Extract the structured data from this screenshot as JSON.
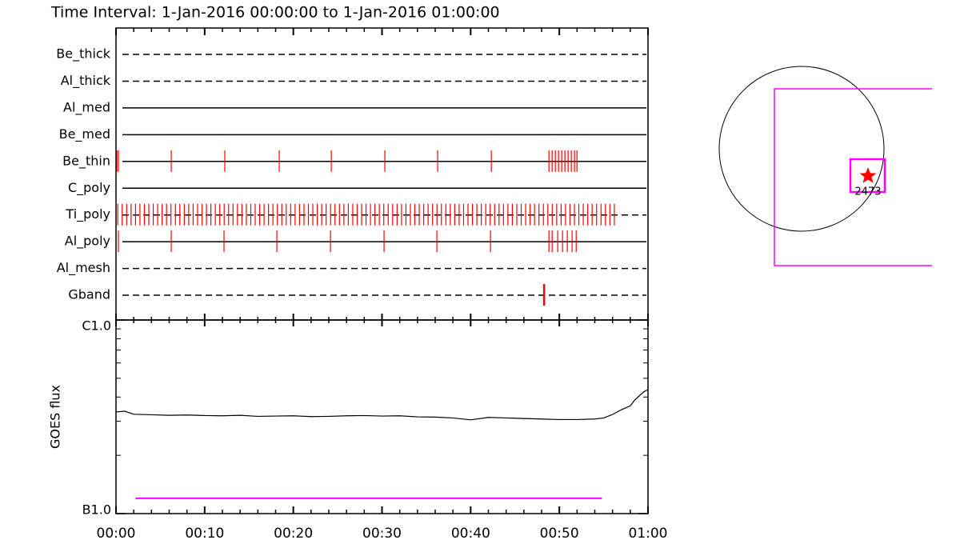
{
  "chart_data": {
    "type": "timeline",
    "title": "Time Interval:  1-Jan-2016 00:00:00 to  1-Jan-2016 01:00:00",
    "xlim": [
      0,
      60
    ],
    "xticks": [
      {
        "value": 0,
        "label": "00:00"
      },
      {
        "value": 10,
        "label": "00:10"
      },
      {
        "value": 20,
        "label": "00:20"
      },
      {
        "value": 30,
        "label": "00:30"
      },
      {
        "value": 40,
        "label": "00:40"
      },
      {
        "value": 50,
        "label": "00:50"
      },
      {
        "value": 60,
        "label": "01:00"
      }
    ],
    "xminorticks": [
      2,
      4,
      6,
      8,
      12,
      14,
      16,
      18,
      22,
      24,
      26,
      28,
      32,
      34,
      36,
      38,
      42,
      44,
      46,
      48,
      52,
      54,
      56,
      58
    ],
    "event_color": "#ff0000",
    "filters": [
      {
        "name": "Be_thick",
        "line_style": "dashed",
        "times": []
      },
      {
        "name": "Al_thick",
        "line_style": "dashed",
        "times": []
      },
      {
        "name": "Al_med",
        "line_style": "solid",
        "times": []
      },
      {
        "name": "Be_med",
        "line_style": "solid",
        "times": []
      },
      {
        "name": "Be_thin",
        "line_style": "solid",
        "times": [
          0.1,
          0.27,
          6.23,
          12.27,
          18.41,
          24.28,
          30.32,
          36.28,
          42.33,
          48.83,
          49.19,
          49.55,
          49.91,
          50.27,
          50.63,
          50.99,
          51.35,
          51.71,
          51.99
        ]
      },
      {
        "name": "C_poly",
        "line_style": "solid",
        "times": []
      },
      {
        "name": "Ti_poly",
        "line_style": "dashed",
        "times": [
          0.2,
          0.7,
          1.2,
          1.7,
          2.2,
          2.7,
          3.2,
          3.7,
          4.2,
          4.7,
          5.2,
          5.7,
          6.2,
          6.7,
          7.2,
          7.7,
          8.2,
          8.7,
          9.2,
          9.7,
          10.2,
          10.7,
          11.2,
          11.7,
          12.2,
          12.7,
          13.2,
          13.7,
          14.2,
          14.7,
          15.2,
          15.7,
          16.2,
          16.7,
          17.2,
          17.7,
          18.2,
          18.7,
          19.2,
          19.7,
          20.2,
          20.7,
          21.2,
          21.7,
          22.2,
          22.7,
          23.2,
          23.7,
          24.2,
          24.7,
          25.2,
          25.7,
          26.2,
          26.7,
          27.2,
          27.7,
          28.2,
          28.7,
          29.2,
          29.7,
          30.2,
          30.7,
          31.2,
          31.7,
          32.2,
          32.7,
          33.2,
          33.7,
          34.2,
          34.7,
          35.2,
          35.7,
          36.2,
          36.7,
          37.2,
          37.7,
          38.2,
          38.7,
          39.2,
          39.7,
          40.2,
          40.7,
          41.2,
          41.7,
          42.2,
          42.7,
          43.2,
          43.7,
          44.2,
          44.7,
          45.2,
          45.7,
          46.2,
          46.7,
          47.2,
          47.7,
          48.2,
          48.7,
          49.2,
          49.7,
          50.2,
          50.7,
          51.2,
          51.7,
          52.2,
          52.7,
          53.2,
          53.7,
          54.2,
          54.7,
          55.2,
          55.7,
          56.2
        ]
      },
      {
        "name": "Al_poly",
        "line_style": "solid",
        "times": [
          0.27,
          6.23,
          12.18,
          18.14,
          24.19,
          30.23,
          36.19,
          42.24,
          48.83,
          49.19,
          49.82,
          50.36,
          50.9,
          51.44,
          51.9
        ]
      },
      {
        "name": "Al_mesh",
        "line_style": "dashed",
        "times": []
      },
      {
        "name": "Gband",
        "line_style": "dashed",
        "times": [
          48.28
        ]
      }
    ],
    "goes": {
      "ylabel": "GOES flux",
      "log": true,
      "ylim": [
        1e-07,
        1e-06
      ],
      "yticks": [
        {
          "value": 1e-07,
          "label": "B1.0"
        },
        {
          "value": 1e-06,
          "label": "C1.0"
        }
      ],
      "yminorticks": [
        2e-07,
        3e-07,
        4e-07,
        5e-07,
        6e-07,
        7e-07,
        8e-07,
        9e-07
      ],
      "color": "#000000",
      "x": [
        0,
        1,
        2,
        4,
        6,
        8,
        10,
        12,
        14,
        16,
        18,
        20,
        22,
        24,
        26,
        28,
        30,
        32,
        34,
        36,
        38,
        40,
        42,
        44,
        46,
        48,
        50,
        52,
        54,
        55,
        56,
        57,
        58,
        58.5,
        59,
        59.5,
        60
      ],
      "values": [
        3.35e-07,
        3.38e-07,
        3.26e-07,
        3.24e-07,
        3.22e-07,
        3.23e-07,
        3.21e-07,
        3.2e-07,
        3.22e-07,
        3.18e-07,
        3.19e-07,
        3.2e-07,
        3.17e-07,
        3.18e-07,
        3.2e-07,
        3.21e-07,
        3.19e-07,
        3.2e-07,
        3.16e-07,
        3.15e-07,
        3.12e-07,
        3.05e-07,
        3.14e-07,
        3.12e-07,
        3.1e-07,
        3.08e-07,
        3.06e-07,
        3.06e-07,
        3.08e-07,
        3.12e-07,
        3.25e-07,
        3.44e-07,
        3.6e-07,
        3.86e-07,
        4.05e-07,
        4.25e-07,
        4.37e-07
      ]
    },
    "interval_line": {
      "color": "#ff00ff",
      "x": [
        2.2,
        54.8
      ],
      "values": [
        1.2e-07,
        1.2e-07
      ]
    }
  },
  "context": {
    "region_label": "2473"
  }
}
